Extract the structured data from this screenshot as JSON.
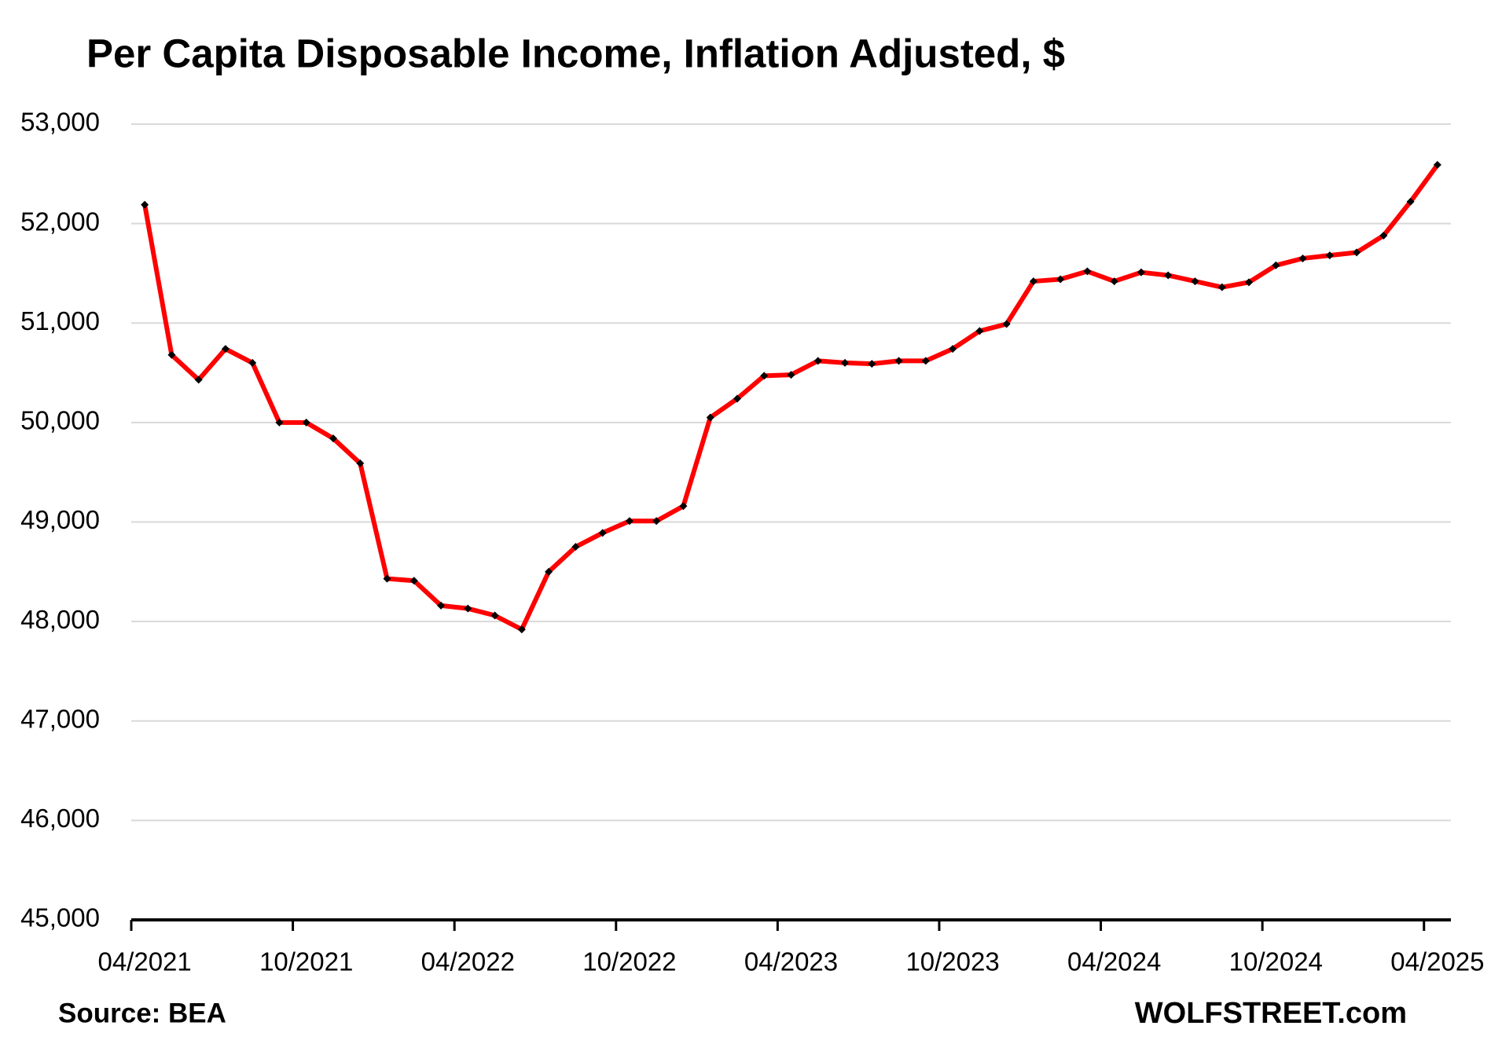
{
  "chart_data": {
    "type": "line",
    "title": "Per Capita Disposable Income, Inflation Adjusted, $",
    "source": "Source: BEA",
    "credit": "WOLFSTREET.com",
    "categories": [
      "04/2021",
      null,
      null,
      null,
      null,
      null,
      "10/2021",
      null,
      null,
      null,
      null,
      null,
      "04/2022",
      null,
      null,
      null,
      null,
      null,
      "10/2022",
      null,
      null,
      null,
      null,
      null,
      "04/2023",
      null,
      null,
      null,
      null,
      null,
      "10/2023",
      null,
      null,
      null,
      null,
      null,
      "04/2024",
      null,
      null,
      null,
      null,
      null,
      "10/2024",
      null,
      null,
      null,
      null,
      null,
      "04/2025"
    ],
    "series": [
      {
        "name": "Per Capita Disposable Income",
        "color": "#ff0000",
        "marker_color": "#000000",
        "values": [
          52190,
          50680,
          50430,
          50740,
          50600,
          50000,
          50000,
          49840,
          49590,
          48430,
          48410,
          48160,
          48130,
          48060,
          47920,
          48500,
          48750,
          48890,
          49010,
          49010,
          49160,
          50050,
          50240,
          50470,
          50480,
          50620,
          50600,
          50590,
          50620,
          50620,
          50740,
          50920,
          50990,
          51420,
          51440,
          51520,
          51420,
          51510,
          51480,
          51420,
          51360,
          51410,
          51580,
          51650,
          51680,
          51710,
          51880,
          52220,
          52590
        ]
      }
    ],
    "ylim": [
      45000,
      53000
    ],
    "yticks": [
      {
        "value": 45000,
        "label": "45,000"
      },
      {
        "value": 46000,
        "label": "46,000"
      },
      {
        "value": 47000,
        "label": "47,000"
      },
      {
        "value": 48000,
        "label": "48,000"
      },
      {
        "value": 49000,
        "label": "49,000"
      },
      {
        "value": 50000,
        "label": "50,000"
      },
      {
        "value": 51000,
        "label": "51,000"
      },
      {
        "value": 52000,
        "label": "52,000"
      },
      {
        "value": 53000,
        "label": "53,000"
      }
    ],
    "grid": true
  }
}
